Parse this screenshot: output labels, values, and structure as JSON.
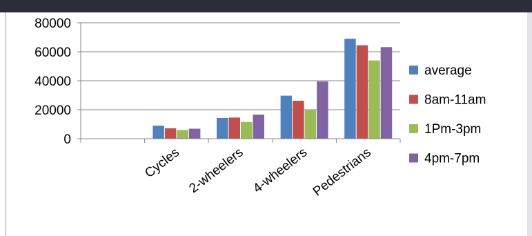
{
  "chart_data": {
    "type": "bar",
    "categories": [
      "",
      "Cycles",
      "2-wheelers",
      "4-wheelers",
      "Pedestrians"
    ],
    "series": [
      {
        "name": "average",
        "color": "#4f81bd",
        "values": [
          0,
          9000,
          14300,
          29700,
          69000
        ]
      },
      {
        "name": "8am-11am",
        "color": "#c0504d",
        "values": [
          0,
          7200,
          14600,
          26200,
          64500
        ]
      },
      {
        "name": "1Pm-3pm",
        "color": "#9bbb59",
        "values": [
          0,
          6000,
          11500,
          20000,
          54000
        ]
      },
      {
        "name": "4pm-7pm",
        "color": "#8064a2",
        "values": [
          0,
          6900,
          16600,
          39500,
          63200
        ]
      }
    ],
    "yticks": [
      "0",
      "20000",
      "40000",
      "60000",
      "80000"
    ],
    "ylim": [
      0,
      80000
    ],
    "grid": true,
    "legend_position": "right"
  }
}
